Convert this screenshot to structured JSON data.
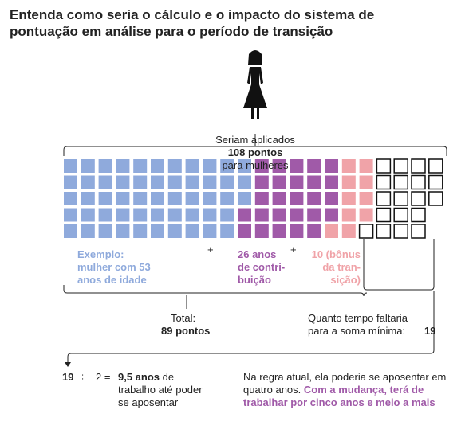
{
  "title": "Entenda como seria o cálculo e o impacto do sistema de pontuação em análise para o período de transição",
  "caption": {
    "before": "Seriam aplicados",
    "bold": "108 pontos",
    "after": "para mulheres"
  },
  "waffle": {
    "groups": [
      {
        "count": 53,
        "color": "#8faadc",
        "label": "Exemplo:\nmulher com 53\nanos de idade"
      },
      {
        "count": 26,
        "color": "#a05aa8",
        "label": "26 anos\nde contri-\nbuição"
      },
      {
        "count": 10,
        "color": "#f0a3a8",
        "label": "10 (bônus\nda tran-\nsição)"
      },
      {
        "count": 19,
        "color": "#ffffff"
      }
    ]
  },
  "plus": [
    "+",
    "+"
  ],
  "total": {
    "label": "Total:",
    "value": "89 pontos"
  },
  "missing": {
    "label": "Quanto tempo faltaria\npara a soma mínima:",
    "value": "19"
  },
  "calc": {
    "a": "19",
    "op": "÷",
    "b": "2 =",
    "result": "9,5 anos",
    "rest": "de\ntrabalho até poder\nse aposentar"
  },
  "note": {
    "plain": "Na regra atual, ela poderia se aposentar em quatro anos.",
    "highlight": "Com a mudança, terá de trabalhar por cinco anos e meio a mais"
  }
}
